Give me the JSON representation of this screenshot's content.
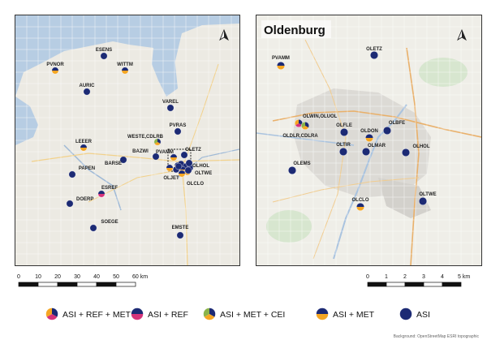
{
  "colors": {
    "navy": "#1c2a74",
    "orange": "#f5a623",
    "magenta": "#d6337a",
    "green": "#8ab34a",
    "water": "#b7cde3",
    "land": "#eceae3",
    "urban": "#d6d4cf",
    "grid": "#ffffff"
  },
  "left_map": {
    "stations": [
      {
        "name": "ESENS",
        "type": "ASI"
      },
      {
        "name": "PVNOR",
        "type": "ASI + MET"
      },
      {
        "name": "WITTM",
        "type": "ASI + MET"
      },
      {
        "name": "AURIC",
        "type": "ASI"
      },
      {
        "name": "VAREL",
        "type": "ASI"
      },
      {
        "name": "PVRAS",
        "type": "ASI"
      },
      {
        "name": "WESTE,CDLRB",
        "type": "ASI + MET + CEI"
      },
      {
        "name": "LEEER",
        "type": "ASI + MET"
      },
      {
        "name": "BAZWI",
        "type": "ASI"
      },
      {
        "name": "PVAMM",
        "type": "ASI + MET"
      },
      {
        "name": "OLETZ",
        "type": "ASI"
      },
      {
        "name": "BARSE",
        "type": "ASI"
      },
      {
        "name": "OLHOL",
        "type": "ASI"
      },
      {
        "name": "PAPEN",
        "type": "ASI"
      },
      {
        "name": "OLTWE",
        "type": "ASI"
      },
      {
        "name": "OLJET",
        "type": "ASI + MET"
      },
      {
        "name": "OLCLO",
        "type": "ASI + MET"
      },
      {
        "name": "ESREF",
        "type": "ASI + REF"
      },
      {
        "name": "DOERP",
        "type": "ASI"
      },
      {
        "name": "SOEGE",
        "type": "ASI"
      },
      {
        "name": "EMSTE",
        "type": "ASI"
      }
    ],
    "scale": {
      "ticks": [
        "0",
        "10",
        "20",
        "30",
        "40",
        "50",
        "60 km"
      ]
    }
  },
  "right_map": {
    "title": "Oldenburg",
    "stations": [
      {
        "name": "OLETZ",
        "type": "ASI"
      },
      {
        "name": "PVAMM",
        "type": "ASI + MET"
      },
      {
        "name": "OLWIN,OLUOL",
        "type": "ASI + REF + MET"
      },
      {
        "name": "OLDLR,CDLRA",
        "type": "ASI + MET + CEI"
      },
      {
        "name": "OLFLE",
        "type": "ASI"
      },
      {
        "name": "OLDON",
        "type": "ASI + MET"
      },
      {
        "name": "OLBFE",
        "type": "ASI"
      },
      {
        "name": "OLTIR",
        "type": "ASI"
      },
      {
        "name": "OLMAR",
        "type": "ASI"
      },
      {
        "name": "OLHOL",
        "type": "ASI"
      },
      {
        "name": "OLEMS",
        "type": "ASI"
      },
      {
        "name": "OLCLO",
        "type": "ASI + MET"
      },
      {
        "name": "OLTWE",
        "type": "ASI"
      }
    ],
    "scale": {
      "ticks": [
        "0",
        "1",
        "2",
        "3",
        "4",
        "5 km"
      ]
    }
  },
  "legend": [
    {
      "label": "ASI + REF + MET",
      "type": "ASI + REF + MET"
    },
    {
      "label": "ASI + REF",
      "type": "ASI + REF"
    },
    {
      "label": "ASI + MET + CEI",
      "type": "ASI + MET + CEI"
    },
    {
      "label": "ASI + MET",
      "type": "ASI + MET"
    },
    {
      "label": "ASI",
      "type": "ASI"
    }
  ],
  "attribution": "Background: OpenStreetMap ESRI topographic"
}
